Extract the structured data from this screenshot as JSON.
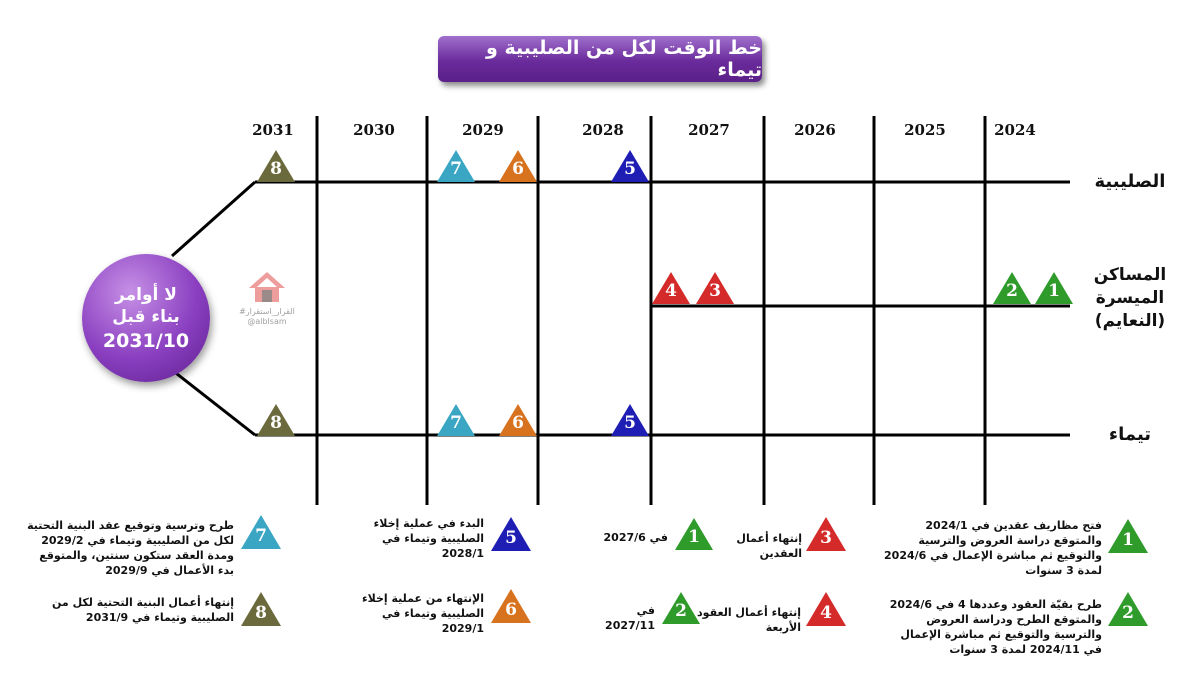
{
  "title": "خط الوقت لكل من الصليبية و تيماء",
  "years": [
    "2024",
    "2025",
    "2026",
    "2027",
    "2028",
    "2029",
    "2030",
    "2031"
  ],
  "rows": {
    "sulaibiya": "الصليبية",
    "masakin_line1": "المساكن",
    "masakin_line2": "الميسرة",
    "masakin_line3": "(النعايم)",
    "taima": "تيماء"
  },
  "deadline": {
    "line1": "لا أوامر",
    "line2": "بناء قبل",
    "line3": "2031/10"
  },
  "watermark": {
    "line1": "#القرار_استقرار",
    "line2": "@alblsam"
  },
  "colors": {
    "1": "#2e9b2a",
    "2": "#2e9b2a",
    "3": "#d42a2a",
    "4": "#d42a2a",
    "5": "#1e1eb4",
    "6": "#d7721e",
    "7": "#3aa6c4",
    "8": "#6b6a3c"
  },
  "legend": {
    "item1": "فتح مظاريف عقدين في 2024/1 والمتوقع دراسة العروض والترسية والتوقيع ثم مباشرة الإعمال في 2024/6 لمدة 3 سنوات",
    "item2": "طرح بقيّة العقود وعددها 4 في 2024/6 والمتوقع الطرح ودراسة العروض والترسية والتوقيع ثم مباشرة الإعمال في 2024/11 لمدة 3 سنوات",
    "item3": "إنتهاء أعمال العقدين",
    "item3_date": "في 2027/6",
    "item4": "إنتهاء أعمال العقود الأربعة",
    "item4_date": "في 2027/11",
    "item5": "البدء في عملية إخلاء الصليبية وتيماء في 2028/1",
    "item6": "الإنتهاء من عملية إخلاء الصليبية وتيماء في 2029/1",
    "item7": "طرح وترسية وتوقيع عقد البنية التحتية لكل من الصليبية وتيماء في 2029/2 ومدة العقد ستكون سنتين، والمتوقع بدء الأعمال في 2029/9",
    "item8": "إنتهاء أعمال البنية التحتية لكل من الصليبية وتيماء في 2031/9"
  }
}
